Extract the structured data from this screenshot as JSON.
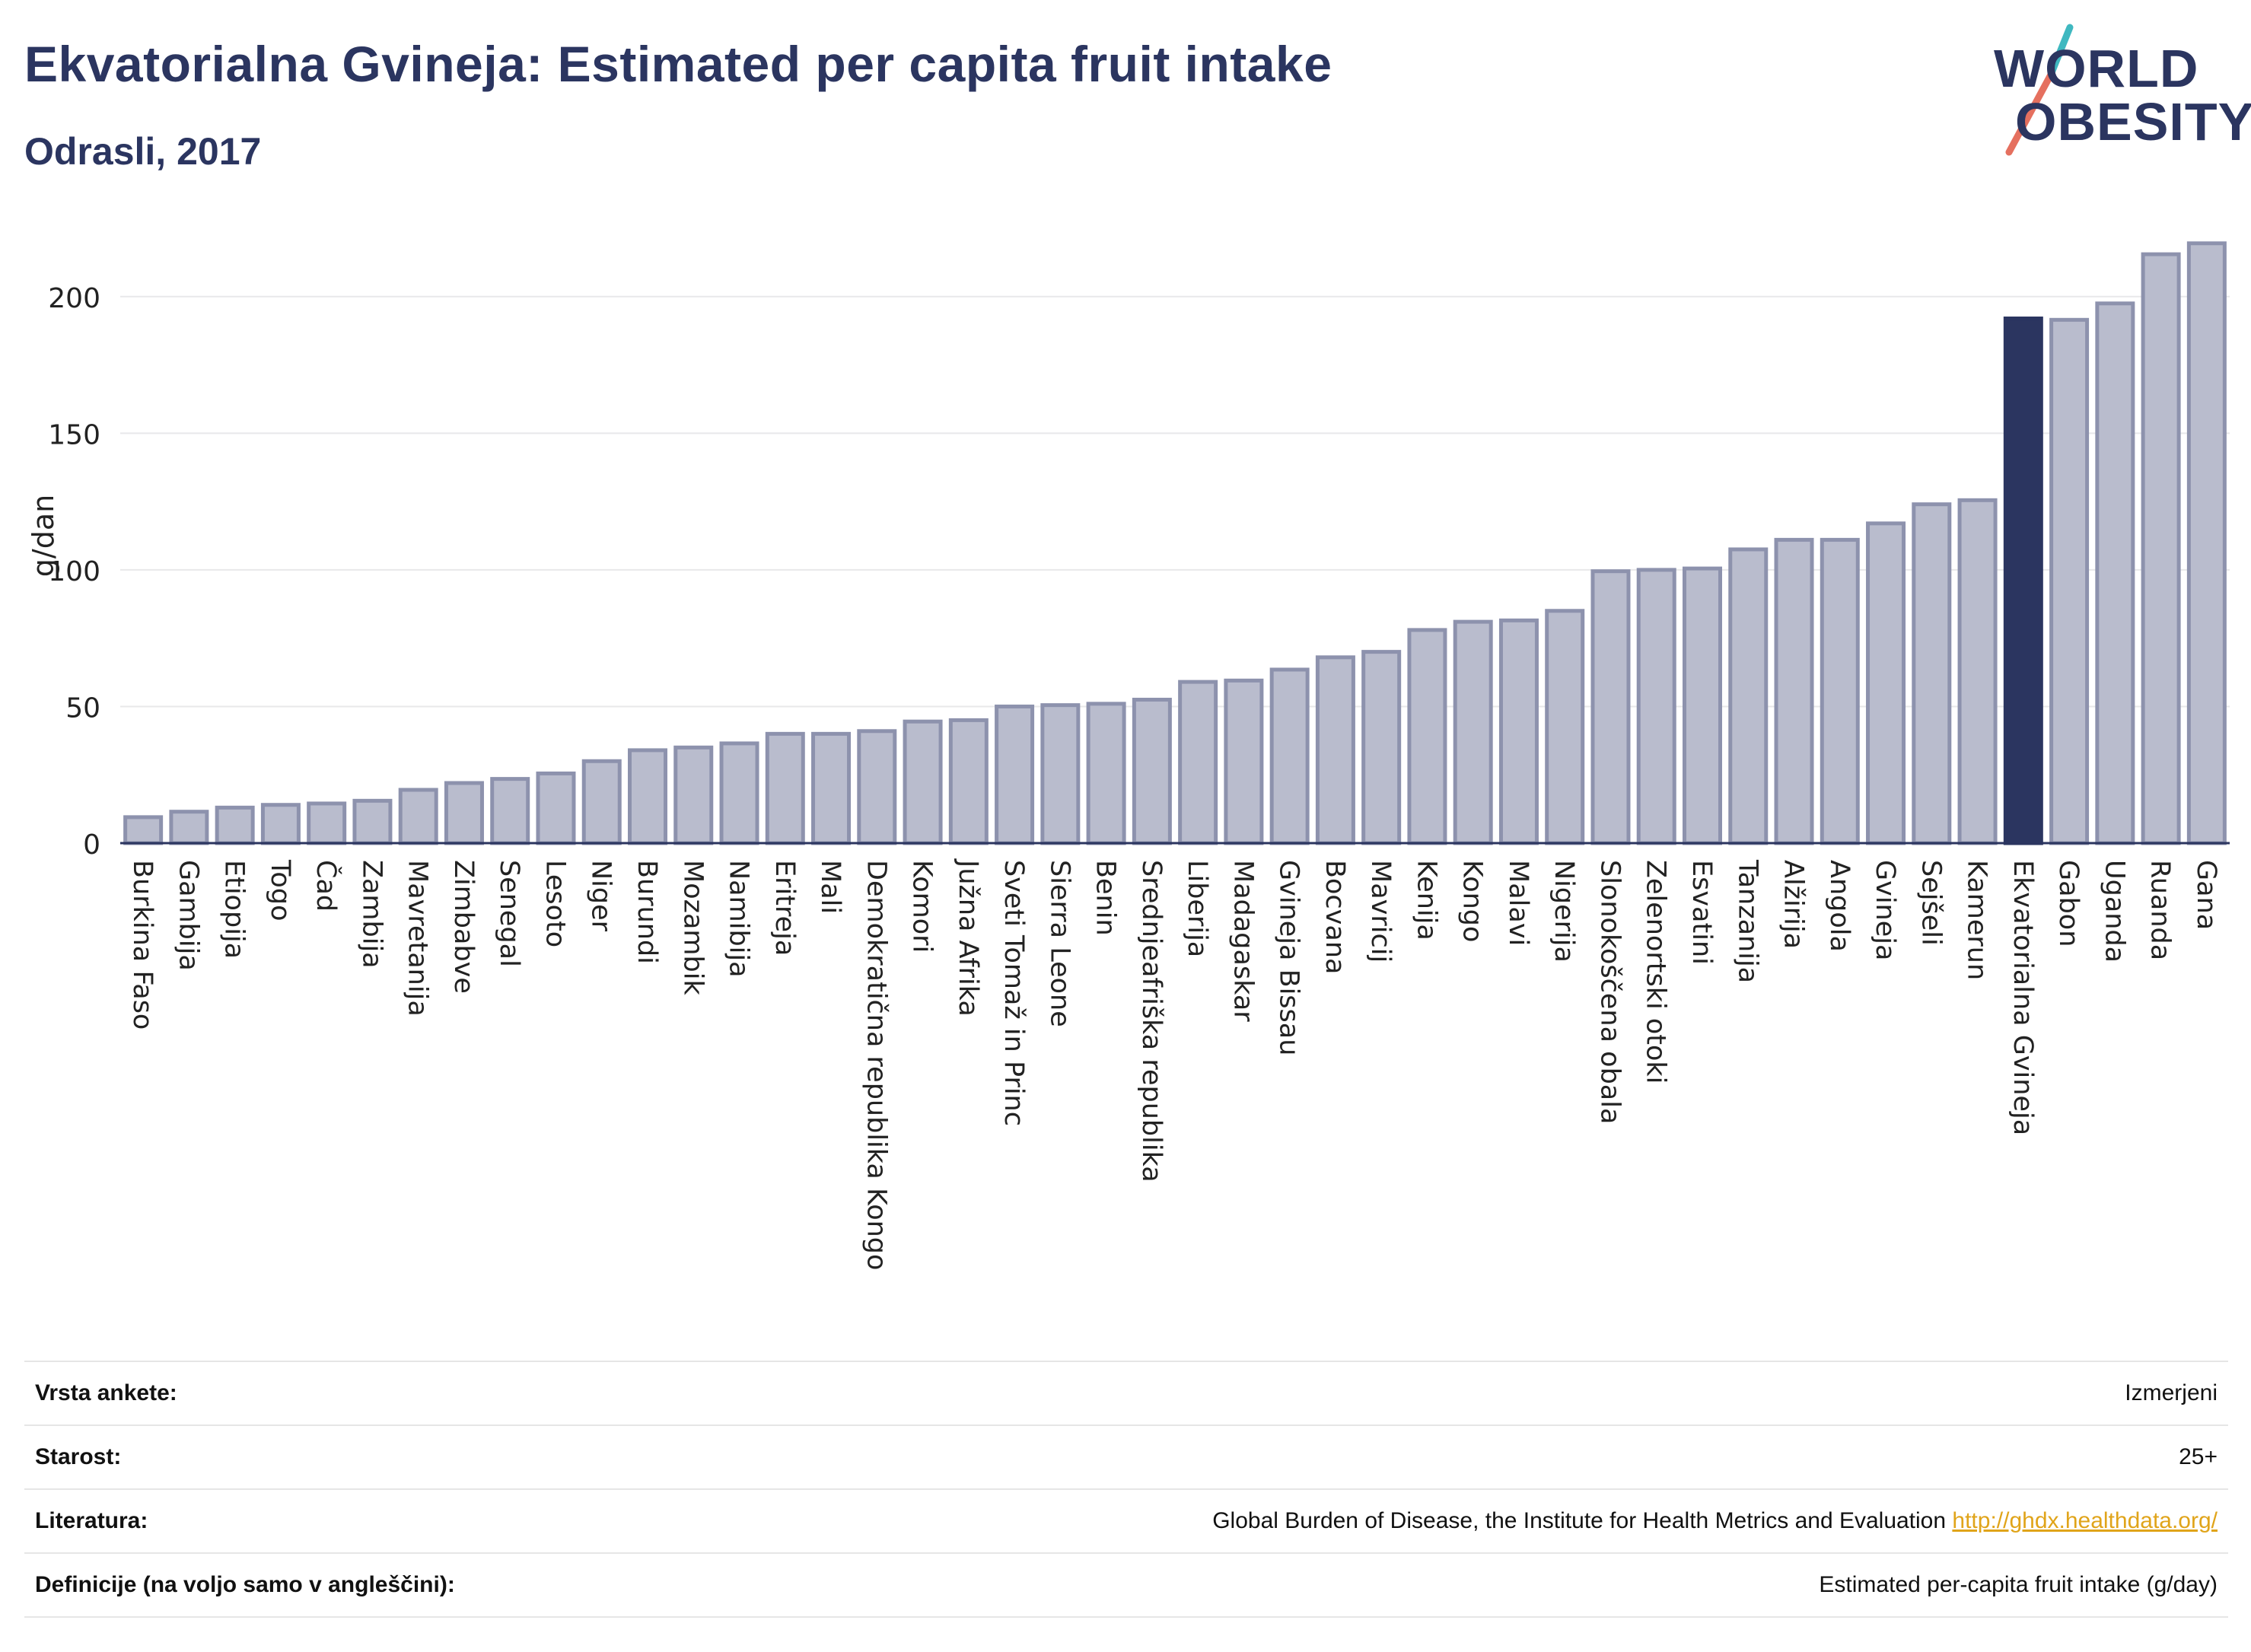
{
  "header": {
    "title": "Ekvatorialna Gvineja: Estimated per capita fruit intake",
    "subtitle": "Odrasli, 2017"
  },
  "logo": {
    "line1": "WORLD",
    "line2": "OBESITY"
  },
  "colors": {
    "bar_default": "#b9bccd",
    "bar_border": "#8d92ad",
    "bar_highlight": "#2b3560",
    "text_dark": "#2b3560",
    "link": "#e0a41a",
    "logo_teal": "#3fb8c0",
    "logo_coral": "#e5705f"
  },
  "chart_data": {
    "type": "bar",
    "ylabel": "g/dan",
    "ylim": [
      0,
      225
    ],
    "yticks": [
      0,
      50,
      100,
      150,
      200
    ],
    "grid": true,
    "highlight": "Ekvatorialna Gvineja",
    "categories": [
      "Burkina Faso",
      "Gambija",
      "Etiopija",
      "Togo",
      "Čad",
      "Zambija",
      "Mavretanija",
      "Zimbabve",
      "Senegal",
      "Lesoto",
      "Niger",
      "Burundi",
      "Mozambik",
      "Namibija",
      "Eritreja",
      "Mali",
      "Demokratična republika Kongo",
      "Komori",
      "Južna Afrika",
      "Sveti Tomaž in Princ",
      "Sierra Leone",
      "Benin",
      "Srednjeafriška republika",
      "Liberija",
      "Madagaskar",
      "Gvineja Bissau",
      "Bocvana",
      "Mavricij",
      "Kenija",
      "Kongo",
      "Malavi",
      "Nigerija",
      "Slonokoščena obala",
      "Zelenortski otoki",
      "Esvatini",
      "Tanzanija",
      "Alžirija",
      "Angola",
      "Gvineja",
      "Sejšeli",
      "Kamerun",
      "Ekvatorialna Gvineja",
      "Gabon",
      "Uganda",
      "Ruanda",
      "Gana"
    ],
    "values": [
      9.5,
      11.5,
      13,
      14,
      14.5,
      15.5,
      19.5,
      22,
      23.5,
      25.5,
      30,
      34,
      35,
      36.5,
      40,
      40,
      41,
      44.5,
      45,
      50,
      50.5,
      51,
      52.5,
      59,
      59.5,
      63.5,
      68,
      70,
      78,
      81,
      81.5,
      85,
      99.5,
      100,
      100.5,
      107.5,
      111,
      111,
      117,
      124,
      125.5,
      192,
      191.5,
      197.5,
      215.5,
      219.5
    ]
  },
  "footer": {
    "rows": [
      {
        "label": "Vrsta ankete:",
        "value": "Izmerjeni"
      },
      {
        "label": "Starost:",
        "value": "25+"
      },
      {
        "label": "Literatura:",
        "value": "Global Burden of Disease, the Institute for Health Metrics and Evaluation",
        "link": "http://ghdx.healthdata.org/"
      },
      {
        "label": "Definicije (na voljo samo v angleščini):",
        "value": "Estimated per-capita fruit intake (g/day)"
      }
    ]
  }
}
